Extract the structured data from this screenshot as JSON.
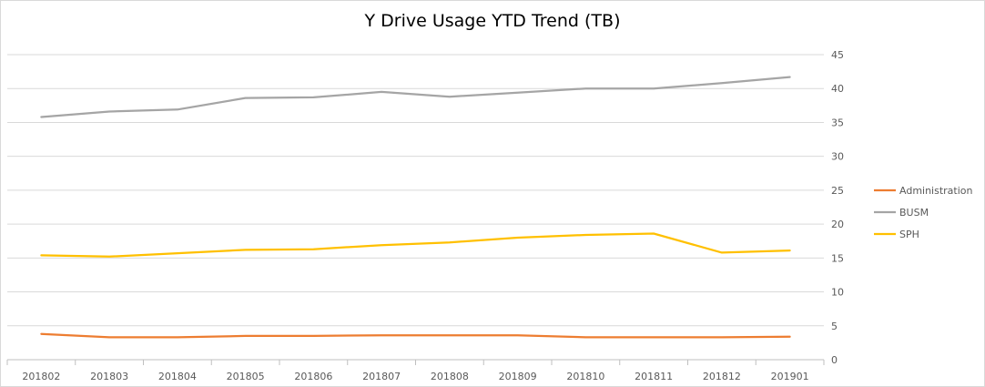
{
  "chart_data": {
    "type": "line",
    "title": "Y Drive Usage YTD Trend (TB)",
    "xlabel": "",
    "ylabel": "",
    "ylim": [
      0,
      45
    ],
    "yticks": [
      0,
      5,
      10,
      15,
      20,
      25,
      30,
      35,
      40,
      45
    ],
    "y_axis_side": "right",
    "grid": true,
    "legend_position": "right",
    "categories": [
      "201802",
      "201803",
      "201804",
      "201805",
      "201806",
      "201807",
      "201808",
      "201809",
      "201810",
      "201811",
      "201812",
      "201901"
    ],
    "series": [
      {
        "name": "Administration",
        "color": "#ed7d31",
        "values": [
          3.8,
          3.3,
          3.3,
          3.5,
          3.5,
          3.6,
          3.6,
          3.6,
          3.3,
          3.3,
          3.3,
          3.4
        ]
      },
      {
        "name": "BUSM",
        "color": "#a5a5a5",
        "values": [
          35.8,
          36.6,
          36.9,
          38.6,
          38.7,
          39.5,
          38.8,
          39.4,
          40.0,
          40.0,
          40.8,
          41.7
        ]
      },
      {
        "name": "SPH",
        "color": "#ffc000",
        "values": [
          15.4,
          15.2,
          15.7,
          16.2,
          16.3,
          16.9,
          17.3,
          18.0,
          18.4,
          18.6,
          15.8,
          16.1
        ]
      }
    ]
  }
}
